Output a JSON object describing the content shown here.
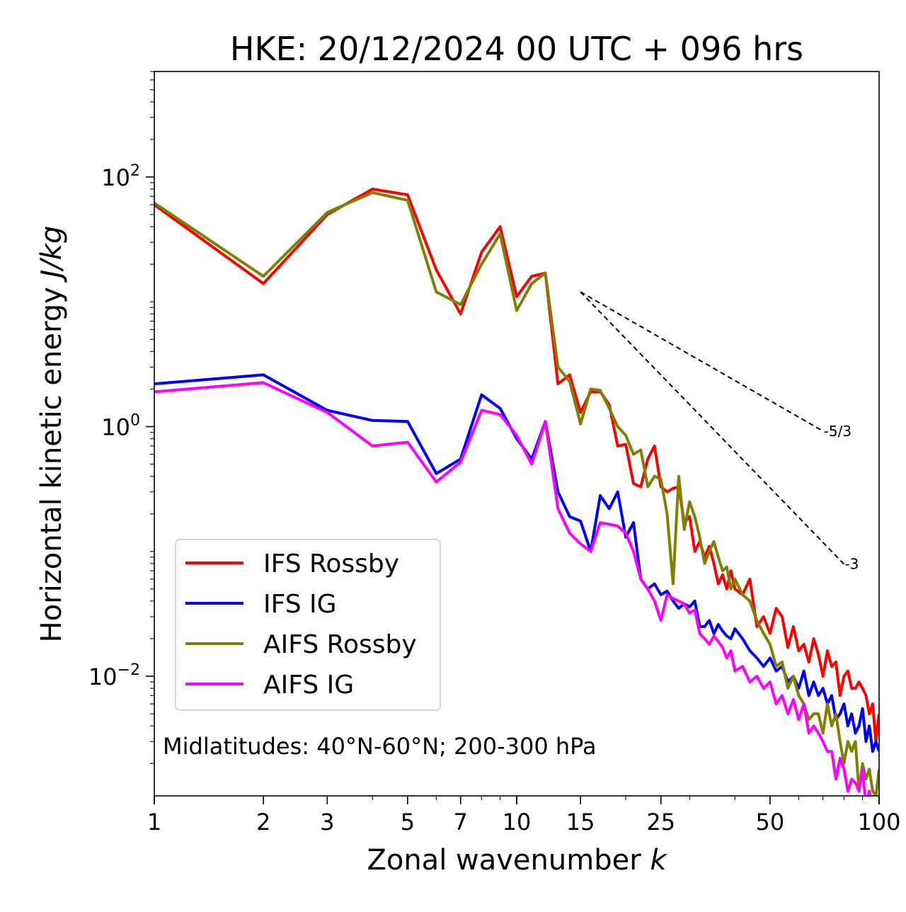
{
  "chart_data": {
    "type": "line",
    "title": "HKE: 20/12/2024 00 UTC + 096 hrs",
    "xlabel": "Zonal wavenumber",
    "xlabel_symbol": "k",
    "ylabel": "Horizontal kinetic energy",
    "ylabel_unit": "J/kg",
    "xscale": "log",
    "yscale": "log",
    "xlim": [
      1,
      100
    ],
    "ylim": [
      0.0011,
      700
    ],
    "x_ticks": [
      1,
      2,
      3,
      5,
      7,
      10,
      15,
      25,
      50,
      100
    ],
    "x_tick_labels": [
      "1",
      "2",
      "3",
      "5",
      "7",
      "10",
      "15",
      "25",
      "50",
      "100"
    ],
    "y_ticks": [
      0.01,
      1,
      100
    ],
    "y_tick_labels": [
      {
        "base": "10",
        "exp": "−2"
      },
      {
        "base": "10",
        "exp": "0"
      },
      {
        "base": "10",
        "exp": "2"
      }
    ],
    "annotation": "Midlatitudes: 40°N-60°N; 200-300 hPa",
    "legend_position": "lower-left",
    "grid": false,
    "reference_lines": [
      {
        "label": "-5/3",
        "slope": -1.6667,
        "x": [
          15,
          70
        ],
        "y0": 12
      },
      {
        "label": "-3",
        "slope": -3,
        "x": [
          15,
          80
        ],
        "y0": 12
      }
    ],
    "series": [
      {
        "name": "IFS Rossby",
        "color": "#ff0000",
        "x": [
          1,
          2,
          3,
          4,
          5,
          6,
          7,
          8,
          9,
          10,
          11,
          12,
          13,
          14,
          15,
          16,
          17,
          18,
          19,
          20,
          21,
          22,
          23,
          24,
          25,
          26,
          27,
          28,
          29,
          30,
          31,
          32,
          33,
          34,
          35,
          36,
          37,
          38,
          39,
          40,
          42,
          44,
          46,
          48,
          50,
          52,
          54,
          56,
          58,
          60,
          62,
          64,
          66,
          68,
          70,
          72,
          74,
          76,
          78,
          80,
          82,
          84,
          86,
          88,
          90,
          92,
          94,
          96,
          98,
          100
        ],
        "y": [
          60,
          14,
          50,
          80,
          72,
          18,
          8,
          25,
          40,
          11,
          16,
          17,
          2.2,
          2.6,
          1.3,
          1.9,
          1.9,
          1.5,
          0.7,
          0.72,
          0.35,
          0.33,
          0.55,
          0.7,
          0.33,
          0.3,
          0.32,
          0.33,
          0.17,
          0.19,
          0.1,
          0.12,
          0.09,
          0.11,
          0.08,
          0.055,
          0.065,
          0.05,
          0.07,
          0.05,
          0.045,
          0.06,
          0.025,
          0.03,
          0.022,
          0.035,
          0.03,
          0.017,
          0.025,
          0.016,
          0.018,
          0.013,
          0.02,
          0.015,
          0.01,
          0.016,
          0.012,
          0.013,
          0.007,
          0.01,
          0.011,
          0.008,
          0.008,
          0.009,
          0.008,
          0.007,
          0.005,
          0.006,
          0.003,
          0.005
        ]
      },
      {
        "name": "IFS IG",
        "color": "#0000ff",
        "x": [
          1,
          2,
          3,
          4,
          5,
          6,
          7,
          8,
          9,
          10,
          11,
          12,
          13,
          14,
          15,
          16,
          17,
          18,
          19,
          20,
          21,
          22,
          23,
          24,
          25,
          26,
          27,
          28,
          29,
          30,
          31,
          32,
          33,
          34,
          35,
          36,
          37,
          38,
          39,
          40,
          42,
          44,
          46,
          48,
          50,
          52,
          54,
          56,
          58,
          60,
          62,
          64,
          66,
          68,
          70,
          72,
          74,
          76,
          78,
          80,
          82,
          84,
          86,
          88,
          90,
          92,
          94,
          96,
          98,
          100
        ],
        "y": [
          2.2,
          2.6,
          1.35,
          1.12,
          1.1,
          0.42,
          0.55,
          1.8,
          1.4,
          0.8,
          0.55,
          1.1,
          0.3,
          0.19,
          0.175,
          0.1,
          0.28,
          0.22,
          0.3,
          0.13,
          0.17,
          0.06,
          0.05,
          0.055,
          0.045,
          0.048,
          0.04,
          0.035,
          0.038,
          0.036,
          0.04,
          0.025,
          0.025,
          0.028,
          0.022,
          0.026,
          0.023,
          0.021,
          0.02,
          0.024,
          0.02,
          0.016,
          0.014,
          0.012,
          0.014,
          0.011,
          0.012,
          0.009,
          0.01,
          0.008,
          0.011,
          0.007,
          0.009,
          0.007,
          0.008,
          0.006,
          0.007,
          0.0045,
          0.005,
          0.006,
          0.004,
          0.005,
          0.0035,
          0.004,
          0.0055,
          0.003,
          0.004,
          0.0025,
          0.003,
          0.0025
        ]
      },
      {
        "name": "AIFS Rossby",
        "color": "#808000",
        "x": [
          1,
          2,
          3,
          4,
          5,
          6,
          7,
          8,
          9,
          10,
          11,
          12,
          13,
          14,
          15,
          16,
          17,
          18,
          19,
          20,
          21,
          22,
          23,
          24,
          25,
          26,
          27,
          28,
          29,
          30,
          31,
          32,
          33,
          34,
          35,
          36,
          37,
          38,
          39,
          40,
          42,
          44,
          46,
          48,
          50,
          52,
          54,
          56,
          58,
          60,
          62,
          64,
          66,
          68,
          70,
          72,
          74,
          76,
          78,
          80,
          82,
          84,
          86,
          88,
          90,
          92,
          94,
          96,
          98,
          100
        ],
        "y": [
          62,
          16,
          52,
          75,
          65,
          12,
          9.5,
          20,
          35,
          8.5,
          14,
          17,
          3,
          2.3,
          1.05,
          2,
          1.95,
          1.4,
          1,
          0.85,
          0.6,
          0.65,
          0.33,
          0.4,
          0.38,
          0.2,
          0.055,
          0.4,
          0.15,
          0.25,
          0.19,
          0.13,
          0.08,
          0.1,
          0.12,
          0.09,
          0.07,
          0.075,
          0.05,
          0.06,
          0.045,
          0.04,
          0.028,
          0.022,
          0.018,
          0.012,
          0.013,
          0.008,
          0.01,
          0.007,
          0.006,
          0.0045,
          0.005,
          0.005,
          0.0035,
          0.006,
          0.004,
          0.005,
          0.003,
          0.002,
          0.003,
          0.0025,
          0.003,
          0.0012,
          0.002,
          0.0015,
          0.0018,
          0.0012,
          0.0011,
          0.0018
        ]
      },
      {
        "name": "AIFS IG",
        "color": "#ff00ff",
        "x": [
          1,
          2,
          3,
          4,
          5,
          6,
          7,
          8,
          9,
          10,
          11,
          12,
          13,
          14,
          15,
          16,
          17,
          18,
          19,
          20,
          21,
          22,
          23,
          24,
          25,
          26,
          27,
          28,
          29,
          30,
          31,
          32,
          33,
          34,
          35,
          36,
          37,
          38,
          39,
          40,
          42,
          44,
          46,
          48,
          50,
          52,
          54,
          56,
          58,
          60,
          62,
          64,
          66,
          68,
          70,
          72,
          74,
          76,
          78,
          80,
          82,
          84,
          86,
          88,
          90,
          92,
          94,
          96,
          98,
          100
        ],
        "y": [
          1.9,
          2.25,
          1.3,
          0.7,
          0.75,
          0.36,
          0.52,
          1.35,
          1.25,
          0.85,
          0.5,
          1.1,
          0.22,
          0.14,
          0.115,
          0.1,
          0.17,
          0.165,
          0.16,
          0.14,
          0.1,
          0.06,
          0.05,
          0.04,
          0.028,
          0.045,
          0.042,
          0.04,
          0.038,
          0.032,
          0.034,
          0.022,
          0.02,
          0.018,
          0.021,
          0.019,
          0.017,
          0.014,
          0.016,
          0.011,
          0.012,
          0.009,
          0.01,
          0.008,
          0.009,
          0.006,
          0.007,
          0.005,
          0.0065,
          0.0045,
          0.006,
          0.0035,
          0.004,
          0.0035,
          0.003,
          0.0025,
          0.0025,
          0.0015,
          0.0022,
          0.0018,
          0.0012,
          0.0015,
          0.0014,
          0.0012,
          0.0018,
          0.0009,
          0.0012,
          0.0008,
          0.0009,
          0.0007
        ]
      }
    ]
  }
}
